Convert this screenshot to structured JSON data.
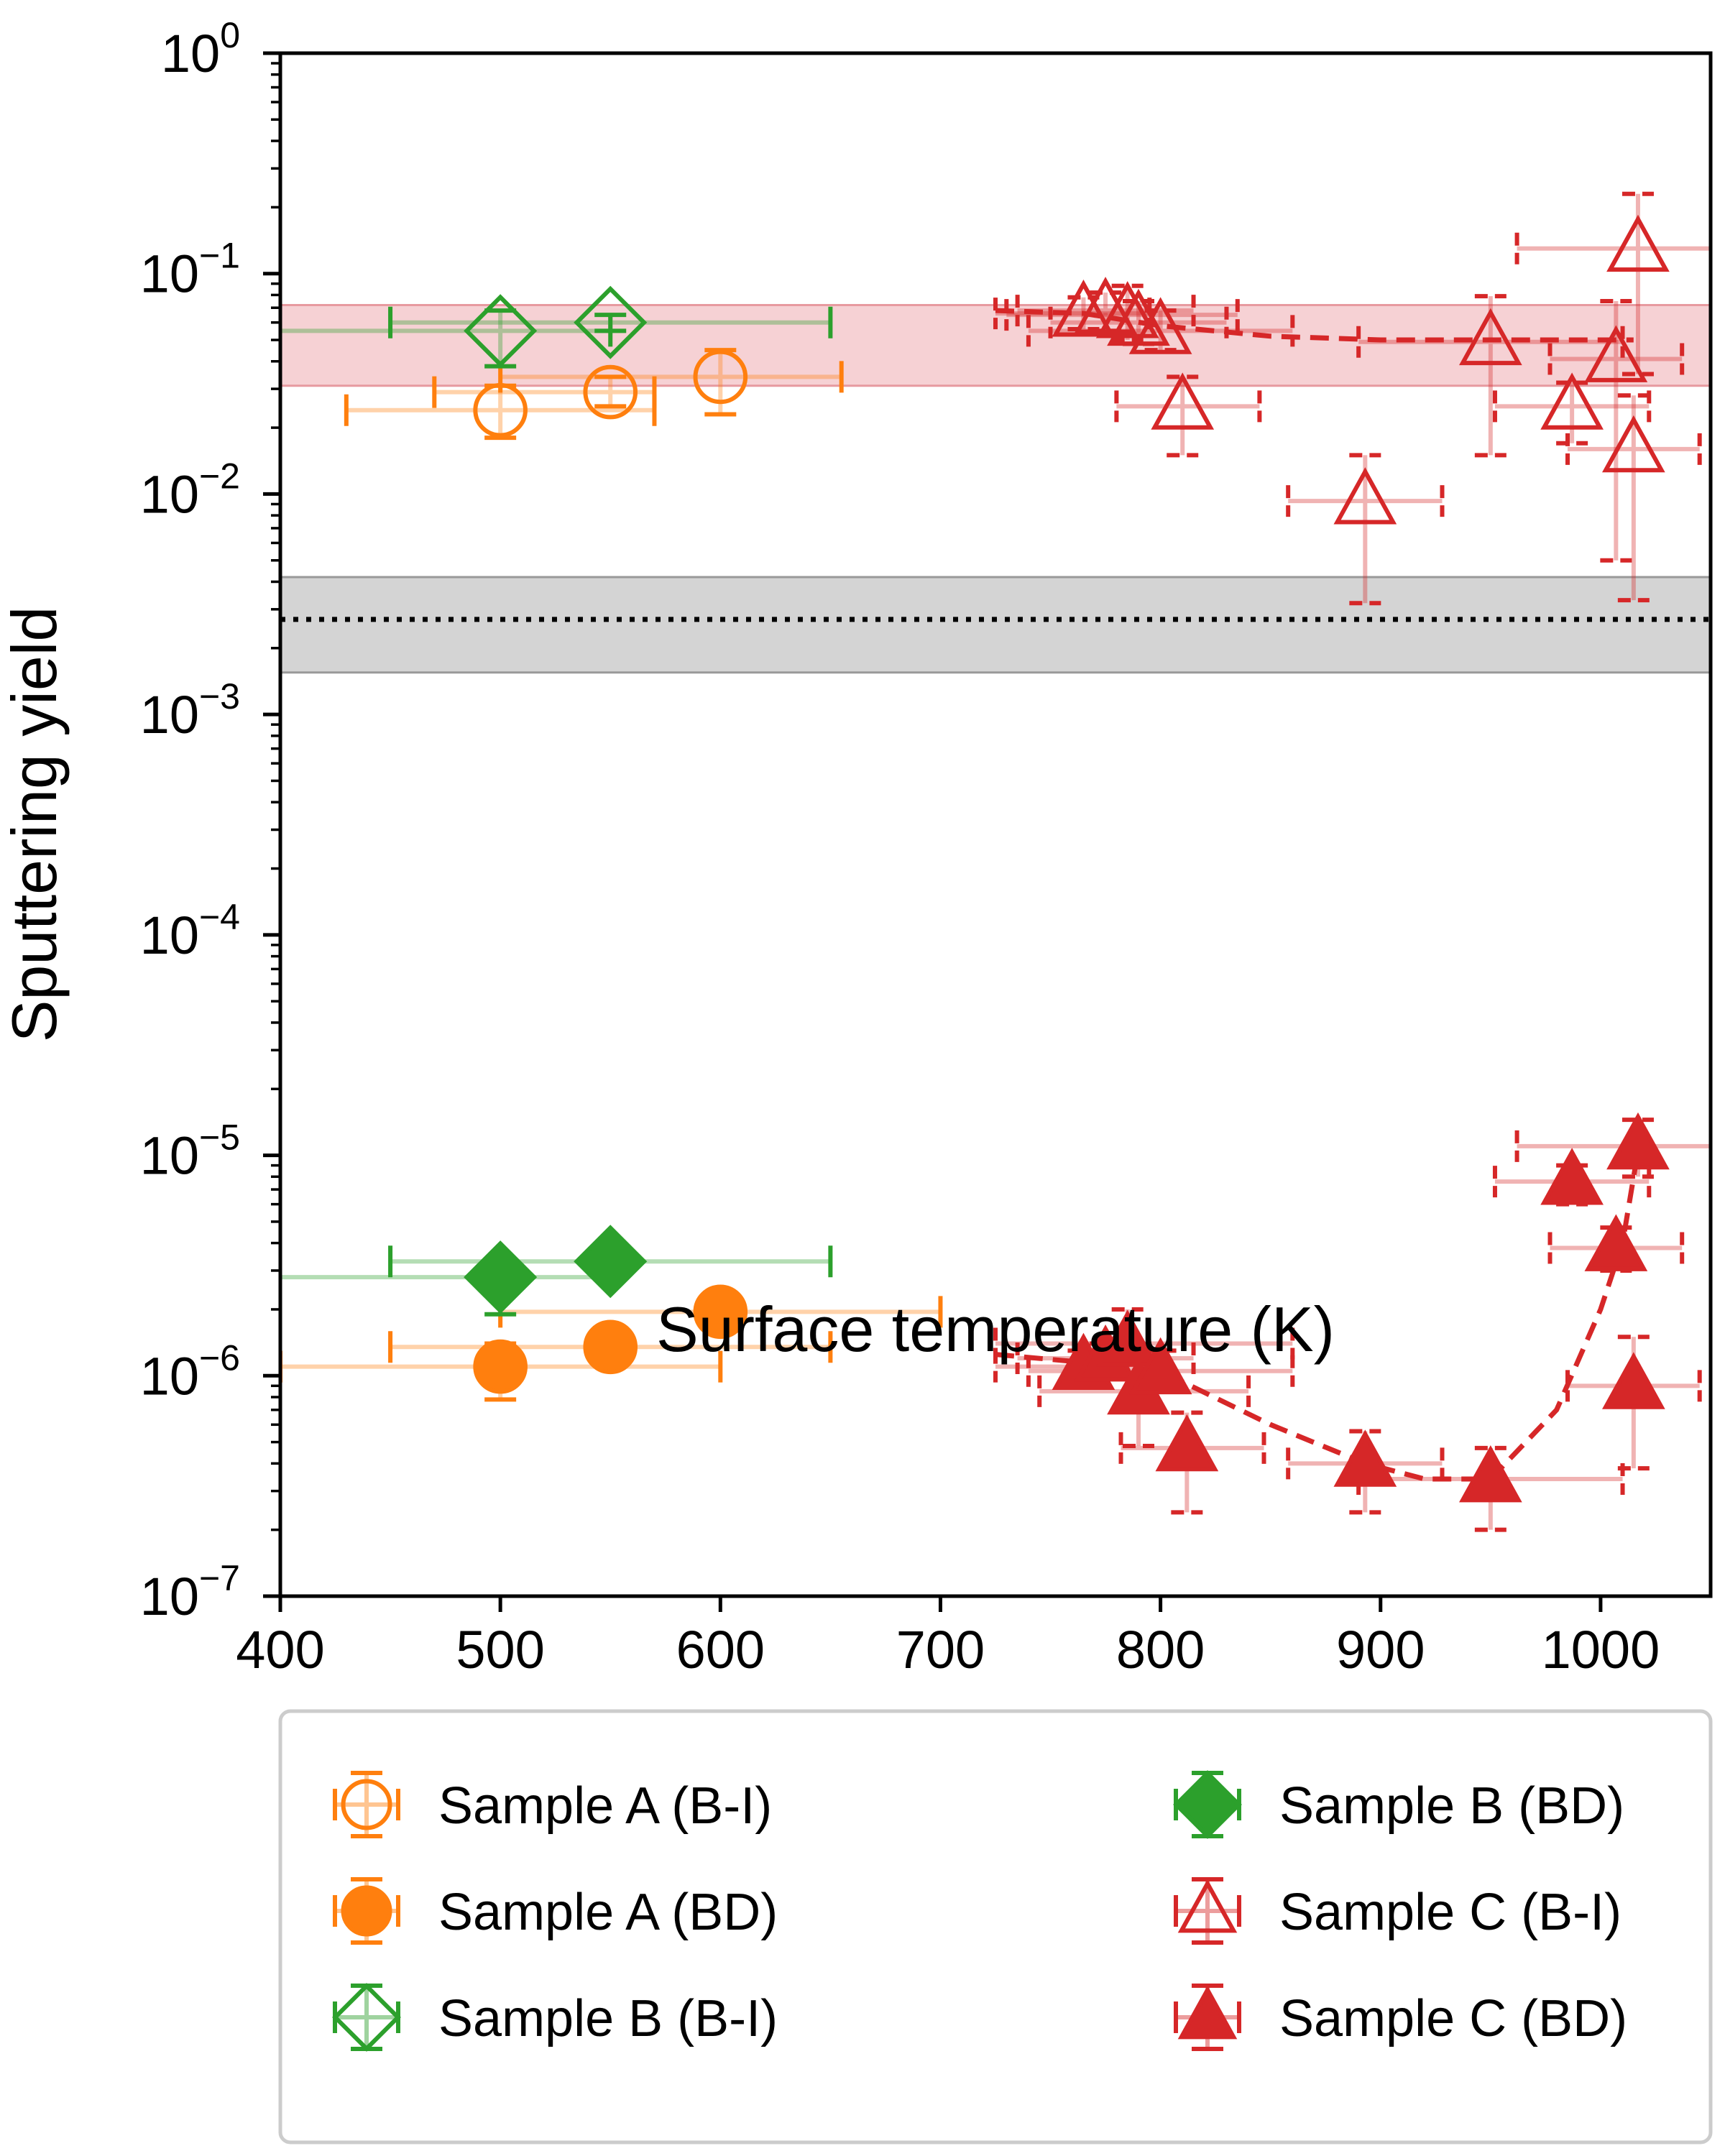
{
  "chart_data": {
    "type": "scatter",
    "xlabel": "Surface temperature (K)",
    "ylabel": "Sputtering yield",
    "xlim": [
      400,
      1050
    ],
    "ylim": [
      1e-07,
      1
    ],
    "yscale": "log",
    "xticks": [
      "400",
      "500",
      "600",
      "700",
      "800",
      "900",
      "1000"
    ],
    "yticks": [
      {
        "base": "10",
        "exp": "0"
      },
      {
        "base": "10",
        "exp": "−1"
      },
      {
        "base": "10",
        "exp": "−2"
      },
      {
        "base": "10",
        "exp": "−3"
      },
      {
        "base": "10",
        "exp": "−4"
      },
      {
        "base": "10",
        "exp": "−5"
      },
      {
        "base": "10",
        "exp": "−6"
      },
      {
        "base": "10",
        "exp": "−7"
      }
    ],
    "legend_position": "below",
    "bands": [
      {
        "y_low": 0.031,
        "y_high": 0.072,
        "color": "#f4c9cc"
      },
      {
        "y_low": 0.00155,
        "y_high": 0.0042,
        "color": "#cccccc"
      }
    ],
    "reference_line": {
      "y": 0.0027,
      "style": "dotted",
      "color": "#000000"
    },
    "series": [
      {
        "name": "Sample A (B-I)",
        "marker": "circle",
        "filled": false,
        "color": "#ff7f0e",
        "points": [
          {
            "x": 500,
            "y": 0.024,
            "xerr": [
              70,
              70
            ],
            "yerr": [
              0.018,
              0.031
            ]
          },
          {
            "x": 550,
            "y": 0.029,
            "xerr": [
              80,
              20
            ],
            "yerr": [
              0.025,
              0.034
            ]
          },
          {
            "x": 600,
            "y": 0.034,
            "xerr": [
              100,
              55
            ],
            "yerr": [
              0.023,
              0.045
            ]
          }
        ]
      },
      {
        "name": "Sample A (BD)",
        "marker": "circle",
        "filled": true,
        "color": "#ff7f0e",
        "points": [
          {
            "x": 500,
            "y": 1.1e-06,
            "xerr": [
              100,
              100
            ],
            "yerr": [
              7.8e-07,
              1.4e-06
            ]
          },
          {
            "x": 550,
            "y": 1.35e-06,
            "xerr": [
              100,
              100
            ],
            "yerr": [
              1.2e-06,
              1.5e-06
            ]
          },
          {
            "x": 600,
            "y": 1.95e-06,
            "xerr": [
              100,
              100
            ],
            "yerr": [
              1.8e-06,
              2.1e-06
            ]
          }
        ]
      },
      {
        "name": "Sample B (B-I)",
        "marker": "diamond",
        "filled": false,
        "color": "#2ca02c",
        "points": [
          {
            "x": 500,
            "y": 0.055,
            "xerr": [
              130,
              50
            ],
            "yerr": [
              0.038,
              0.068
            ]
          },
          {
            "x": 550,
            "y": 0.06,
            "xerr": [
              100,
              100
            ],
            "yerr": [
              0.055,
              0.065
            ]
          }
        ]
      },
      {
        "name": "Sample B (BD)",
        "marker": "diamond",
        "filled": true,
        "color": "#2ca02c",
        "points": [
          {
            "x": 500,
            "y": 2.8e-06,
            "xerr": [
              130,
              50
            ],
            "yerr": [
              1.9e-06,
              3.1e-06
            ]
          },
          {
            "x": 550,
            "y": 3.3e-06,
            "xerr": [
              100,
              100
            ],
            "yerr": [
              3e-06,
              3.6e-06
            ]
          }
        ]
      },
      {
        "name": "Sample C (B-I)",
        "marker": "triangle",
        "filled": false,
        "color": "#d62728",
        "points": [
          {
            "x": 765,
            "y": 0.066,
            "xerr": [
              40,
              30
            ],
            "yerr": [
              0.056,
              0.078
            ]
          },
          {
            "x": 775,
            "y": 0.068,
            "xerr": [
              40,
              40
            ],
            "yerr": [
              0.055,
              0.082
            ]
          },
          {
            "x": 785,
            "y": 0.065,
            "xerr": [
              55,
              50
            ],
            "yerr": [
              0.05,
              0.088
            ]
          },
          {
            "x": 790,
            "y": 0.06,
            "xerr": [
              40,
              40
            ],
            "yerr": [
              0.048,
              0.075
            ]
          },
          {
            "x": 800,
            "y": 0.055,
            "xerr": [
              60,
              60
            ],
            "yerr": [
              0.045,
              0.068
            ]
          },
          {
            "x": 810,
            "y": 0.025,
            "xerr": [
              30,
              35
            ],
            "yerr": [
              0.015,
              0.034
            ]
          },
          {
            "x": 893,
            "y": 0.0093,
            "xerr": [
              35,
              35
            ],
            "yerr": [
              0.0032,
              0.015
            ]
          },
          {
            "x": 950,
            "y": 0.049,
            "xerr": [
              60,
              60
            ],
            "yerr": [
              0.015,
              0.079
            ]
          },
          {
            "x": 987,
            "y": 0.025,
            "xerr": [
              35,
              35
            ],
            "yerr": [
              0.017,
              0.032
            ]
          },
          {
            "x": 1007,
            "y": 0.041,
            "xerr": [
              30,
              30
            ],
            "yerr": [
              0.005,
              0.075
            ]
          },
          {
            "x": 1015,
            "y": 0.016,
            "xerr": [
              30,
              30
            ],
            "yerr": [
              0.0033,
              0.028
            ]
          },
          {
            "x": 1017,
            "y": 0.13,
            "xerr": [
              55,
              55
            ],
            "yerr": [
              0.035,
              0.23
            ]
          }
        ],
        "fit_line": [
          {
            "x": 725,
            "y": 0.068
          },
          {
            "x": 765,
            "y": 0.066
          },
          {
            "x": 800,
            "y": 0.058
          },
          {
            "x": 850,
            "y": 0.052
          },
          {
            "x": 900,
            "y": 0.05
          },
          {
            "x": 950,
            "y": 0.05
          },
          {
            "x": 1000,
            "y": 0.05
          },
          {
            "x": 1015,
            "y": 0.05
          }
        ]
      },
      {
        "name": "Sample C (BD)",
        "marker": "triangle",
        "filled": true,
        "color": "#d62728",
        "points": [
          {
            "x": 765,
            "y": 1.1e-06,
            "xerr": [
              40,
              30
            ],
            "yerr": [
              9.5e-07,
              1.3e-06
            ]
          },
          {
            "x": 775,
            "y": 1.2e-06,
            "xerr": [
              40,
              40
            ],
            "yerr": [
              1e-06,
              1.4e-06
            ]
          },
          {
            "x": 785,
            "y": 1.4e-06,
            "xerr": [
              60,
              75
            ],
            "yerr": [
              1e-06,
              2e-06
            ]
          },
          {
            "x": 790,
            "y": 8.5e-07,
            "xerr": [
              45,
              50
            ],
            "yerr": [
              4.8e-07,
              1.2e-06
            ]
          },
          {
            "x": 800,
            "y": 1.05e-06,
            "xerr": [
              60,
              60
            ],
            "yerr": [
              8.5e-07,
              1.3e-06
            ]
          },
          {
            "x": 812,
            "y": 4.7e-07,
            "xerr": [
              30,
              35
            ],
            "yerr": [
              2.4e-07,
              6.8e-07
            ]
          },
          {
            "x": 893,
            "y": 4e-07,
            "xerr": [
              35,
              35
            ],
            "yerr": [
              2.4e-07,
              5.6e-07
            ]
          },
          {
            "x": 950,
            "y": 3.4e-07,
            "xerr": [
              60,
              60
            ],
            "yerr": [
              2e-07,
              4.7e-07
            ]
          },
          {
            "x": 987,
            "y": 7.6e-06,
            "xerr": [
              35,
              35
            ],
            "yerr": [
              6e-06,
              9e-06
            ]
          },
          {
            "x": 1007,
            "y": 3.8e-06,
            "xerr": [
              30,
              30
            ],
            "yerr": [
              3e-06,
              4.7e-06
            ]
          },
          {
            "x": 1015,
            "y": 9e-07,
            "xerr": [
              30,
              30
            ],
            "yerr": [
              3.8e-07,
              1.5e-06
            ]
          },
          {
            "x": 1017,
            "y": 1.1e-05,
            "xerr": [
              55,
              55
            ],
            "yerr": [
              8e-06,
              1.45e-05
            ]
          }
        ],
        "fit_line": [
          {
            "x": 725,
            "y": 1.25e-06
          },
          {
            "x": 765,
            "y": 1.15e-06
          },
          {
            "x": 800,
            "y": 1.05e-06
          },
          {
            "x": 850,
            "y": 6e-07
          },
          {
            "x": 893,
            "y": 4e-07
          },
          {
            "x": 920,
            "y": 3.4e-07
          },
          {
            "x": 950,
            "y": 3.4e-07
          },
          {
            "x": 980,
            "y": 7e-07
          },
          {
            "x": 1000,
            "y": 2e-06
          },
          {
            "x": 1010,
            "y": 4e-06
          },
          {
            "x": 1017,
            "y": 1.05e-05
          }
        ]
      }
    ]
  }
}
